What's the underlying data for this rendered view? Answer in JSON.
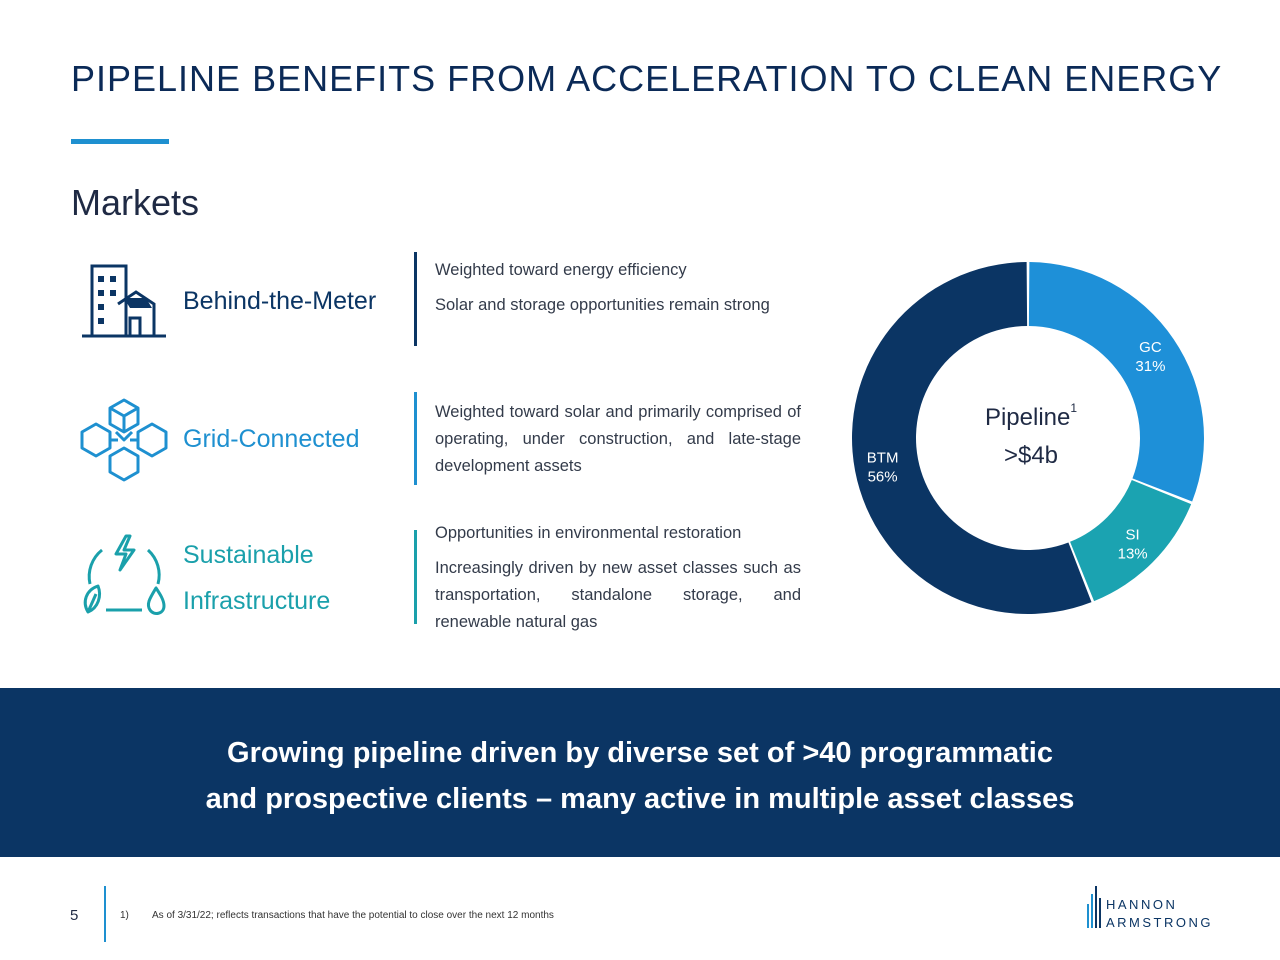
{
  "slide": {
    "title": "PIPELINE BENEFITS FROM ACCELERATION TO CLEAN ENERGY",
    "section": "Markets",
    "page_number": "5",
    "footnote_index": "1)",
    "footnote_text": "As of 3/31/22; reflects transactions that have the potential to close over the next 12 months"
  },
  "markets": [
    {
      "name": "Behind-the-Meter",
      "color": "#0b3564",
      "icon": "building-house-icon",
      "bullets": [
        "Weighted toward energy efficiency",
        "Solar and storage opportunities remain strong"
      ]
    },
    {
      "name": "Grid-Connected",
      "color": "#1e90d0",
      "icon": "cubes-network-icon",
      "bullets": [
        "Weighted toward solar and primarily comprised of operating, under construction, and late-stage development assets"
      ]
    },
    {
      "name_line1": "Sustainable",
      "name_line2": "Infrastructure",
      "color": "#1aa0ab",
      "icon": "sustainability-cycle-icon",
      "bullets": [
        "Opportunities in environmental restoration",
        "Increasingly driven by new asset classes such as transportation, standalone storage, and renewable natural gas"
      ]
    }
  ],
  "chart_data": {
    "type": "pie",
    "categories": [
      "GC",
      "SI",
      "BTM"
    ],
    "values": [
      31,
      13,
      56
    ],
    "labels": [
      "31%",
      "13%",
      "56%"
    ],
    "colors": [
      "#1e90d8",
      "#1ba3b1",
      "#0b3564"
    ],
    "center_label": "Pipeline",
    "center_sup": "1",
    "center_value": ">$4b"
  },
  "banner": {
    "line1": "Growing pipeline driven by diverse set of >40 programmatic",
    "line2": "and prospective clients – many active in multiple asset classes"
  },
  "logo": {
    "line1": "HANNON",
    "line2": "ARMSTRONG"
  }
}
